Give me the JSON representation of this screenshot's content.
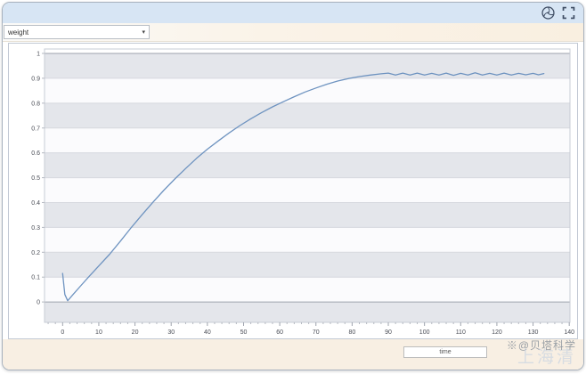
{
  "toolbar": {
    "series_selector": {
      "value": "weight",
      "arrow": "▾"
    }
  },
  "titlebar": {
    "icons": [
      "aperture",
      "fullscreen"
    ]
  },
  "footer": {
    "xaxis_title_input": {
      "value": "time"
    },
    "watermark": "※@贝塔科学",
    "watermark_sub": "上海清"
  },
  "colors": {
    "titlebar_bg": "#d7e5f4",
    "footer_bg": "#f8efe3",
    "line": "#6e93c0",
    "stripe_light": "#fbfbfd",
    "stripe_dark": "#e4e6eb",
    "grid": "#d6d8de",
    "axis": "#9ea3ad",
    "minor_tick": "#b4b8c0",
    "label": "#4b4e57"
  },
  "chart_data": {
    "type": "line",
    "title": "",
    "xlabel": "time",
    "ylabel": "weight",
    "xlim": [
      -5,
      140.2
    ],
    "ylim": [
      -0.082,
      1.018
    ],
    "xticks": [
      0,
      10,
      20,
      30,
      40,
      50,
      60,
      70,
      80,
      90,
      100,
      110,
      120,
      130,
      140
    ],
    "minor_xtick_step": 2,
    "ytick_values": [
      0,
      0.1,
      0.2,
      0.3,
      0.4,
      0.5,
      0.6,
      0.7,
      0.8,
      0.9,
      1
    ],
    "ytick_labels": [
      "0",
      "0.1",
      "0.2",
      "0.3",
      "0.4",
      "0.5",
      "0.6",
      "0.7",
      "0.8",
      "0.9",
      "1"
    ],
    "grid": "horizontal-stripes",
    "legend": "none",
    "series": [
      {
        "name": "weight",
        "color": "#6e93c0",
        "points": [
          [
            0,
            0.115
          ],
          [
            0.6,
            0.03
          ],
          [
            1.4,
            0.005
          ],
          [
            3,
            0.032
          ],
          [
            5,
            0.065
          ],
          [
            7,
            0.098
          ],
          [
            10,
            0.145
          ],
          [
            13,
            0.192
          ],
          [
            16,
            0.245
          ],
          [
            19,
            0.3
          ],
          [
            22,
            0.352
          ],
          [
            25,
            0.402
          ],
          [
            28,
            0.45
          ],
          [
            31,
            0.495
          ],
          [
            34,
            0.537
          ],
          [
            37,
            0.578
          ],
          [
            40,
            0.615
          ],
          [
            43,
            0.648
          ],
          [
            46,
            0.68
          ],
          [
            49,
            0.71
          ],
          [
            52,
            0.737
          ],
          [
            55,
            0.762
          ],
          [
            58,
            0.785
          ],
          [
            61,
            0.806
          ],
          [
            64,
            0.826
          ],
          [
            67,
            0.845
          ],
          [
            70,
            0.861
          ],
          [
            73,
            0.876
          ],
          [
            76,
            0.889
          ],
          [
            79,
            0.899
          ],
          [
            82,
            0.907
          ],
          [
            85,
            0.913
          ],
          [
            88,
            0.918
          ],
          [
            90,
            0.921
          ],
          [
            92,
            0.913
          ],
          [
            94,
            0.921
          ],
          [
            96,
            0.913
          ],
          [
            98,
            0.921
          ],
          [
            100,
            0.913
          ],
          [
            102,
            0.92
          ],
          [
            104,
            0.913
          ],
          [
            106,
            0.921
          ],
          [
            108,
            0.912
          ],
          [
            110,
            0.92
          ],
          [
            112,
            0.913
          ],
          [
            114,
            0.922
          ],
          [
            116,
            0.913
          ],
          [
            118,
            0.92
          ],
          [
            120,
            0.913
          ],
          [
            122,
            0.921
          ],
          [
            124,
            0.913
          ],
          [
            126,
            0.92
          ],
          [
            128,
            0.914
          ],
          [
            130,
            0.92
          ],
          [
            131.5,
            0.914
          ],
          [
            133,
            0.919
          ]
        ]
      }
    ]
  }
}
